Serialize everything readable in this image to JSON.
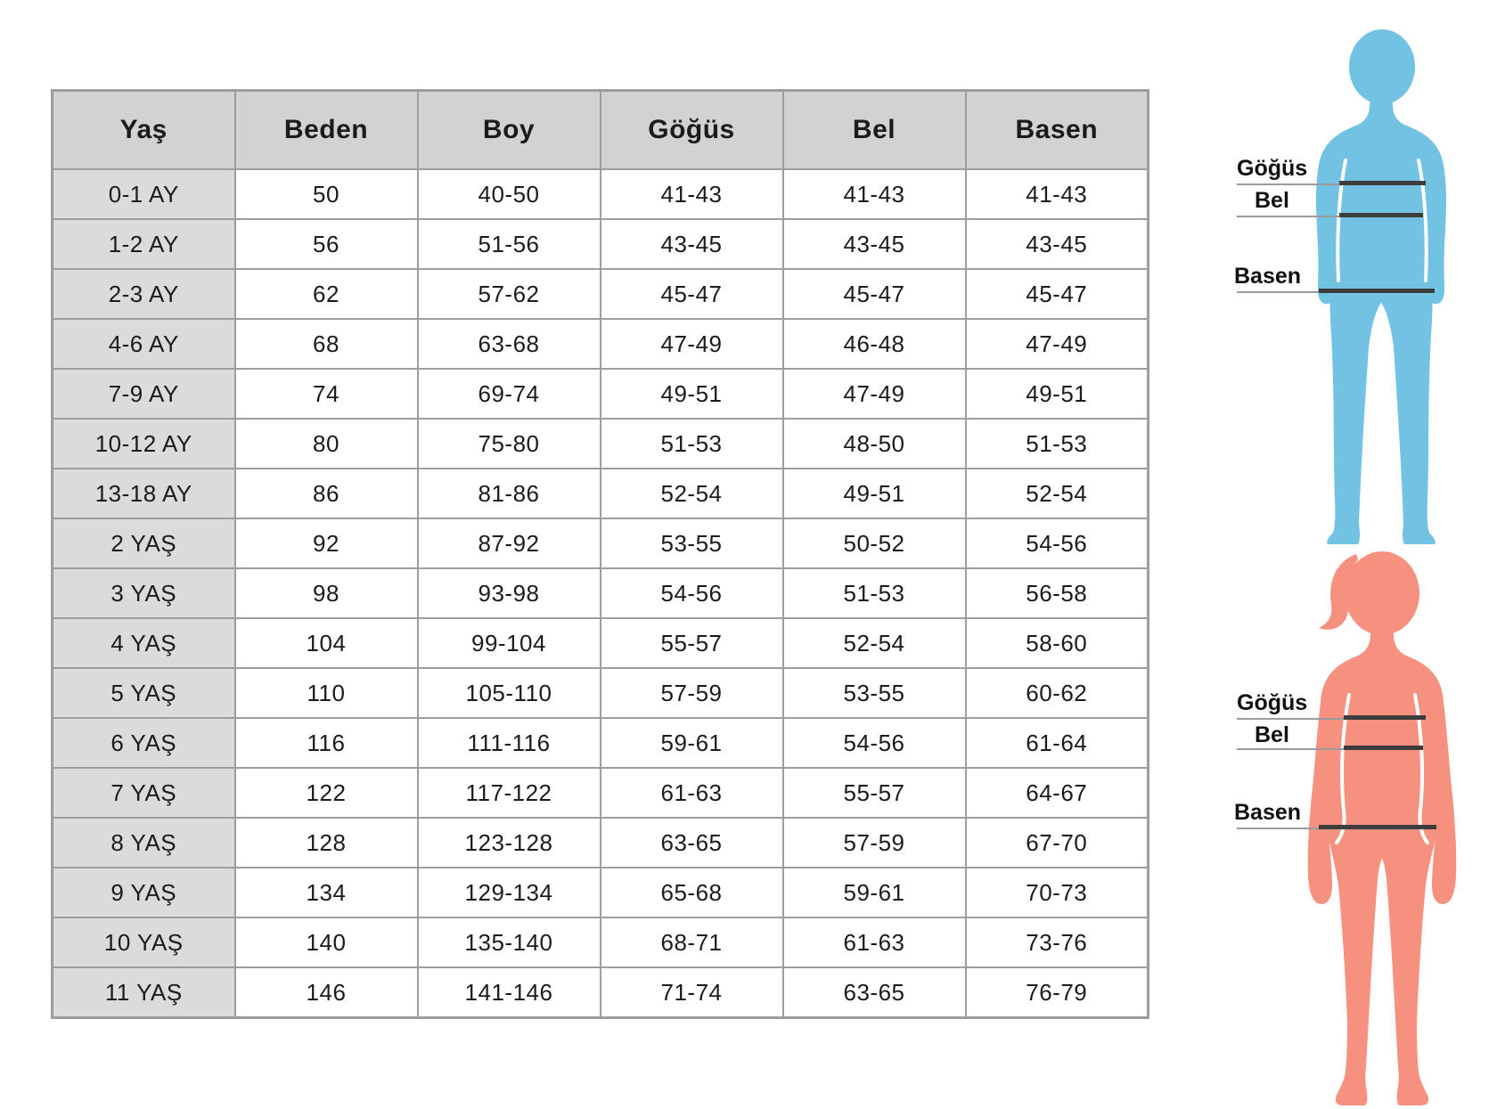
{
  "chart_data": {
    "type": "table",
    "columns": [
      "Yaş",
      "Beden",
      "Boy",
      "Göğüs",
      "Bel",
      "Basen"
    ],
    "rows": [
      [
        "0-1 AY",
        "50",
        "40-50",
        "41-43",
        "41-43",
        "41-43"
      ],
      [
        "1-2 AY",
        "56",
        "51-56",
        "43-45",
        "43-45",
        "43-45"
      ],
      [
        "2-3 AY",
        "62",
        "57-62",
        "45-47",
        "45-47",
        "45-47"
      ],
      [
        "4-6 AY",
        "68",
        "63-68",
        "47-49",
        "46-48",
        "47-49"
      ],
      [
        "7-9 AY",
        "74",
        "69-74",
        "49-51",
        "47-49",
        "49-51"
      ],
      [
        "10-12 AY",
        "80",
        "75-80",
        "51-53",
        "48-50",
        "51-53"
      ],
      [
        "13-18 AY",
        "86",
        "81-86",
        "52-54",
        "49-51",
        "52-54"
      ],
      [
        "2 YAŞ",
        "92",
        "87-92",
        "53-55",
        "50-52",
        "54-56"
      ],
      [
        "3 YAŞ",
        "98",
        "93-98",
        "54-56",
        "51-53",
        "56-58"
      ],
      [
        "4 YAŞ",
        "104",
        "99-104",
        "55-57",
        "52-54",
        "58-60"
      ],
      [
        "5 YAŞ",
        "110",
        "105-110",
        "57-59",
        "53-55",
        "60-62"
      ],
      [
        "6 YAŞ",
        "116",
        "111-116",
        "59-61",
        "54-56",
        "61-64"
      ],
      [
        "7 YAŞ",
        "122",
        "117-122",
        "61-63",
        "55-57",
        "64-67"
      ],
      [
        "8 YAŞ",
        "128",
        "123-128",
        "63-65",
        "57-59",
        "67-70"
      ],
      [
        "9 YAŞ",
        "134",
        "129-134",
        "65-68",
        "59-61",
        "70-73"
      ],
      [
        "10 YAŞ",
        "140",
        "135-140",
        "68-71",
        "61-63",
        "73-76"
      ],
      [
        "11 YAŞ",
        "146",
        "141-146",
        "71-74",
        "63-65",
        "76-79"
      ]
    ]
  },
  "figures": {
    "boy": {
      "color": "#71C2E3",
      "measures": [
        {
          "label": "Göğüs"
        },
        {
          "label": "Bel"
        },
        {
          "label": "Basen"
        }
      ]
    },
    "girl": {
      "color": "#F5917E",
      "measures": [
        {
          "label": "Göğüs"
        },
        {
          "label": "Bel"
        },
        {
          "label": "Basen"
        }
      ]
    }
  },
  "colors": {
    "boy_fill": "#71C2E3",
    "girl_fill": "#F5917E",
    "measure_line": "#3D3D3D",
    "guide_line": "#9B9B9B",
    "header_bg": "#D2D2D2",
    "row_label_bg": "#DBDBDB",
    "table_border": "#9D9D9D",
    "text": "#1B1B1B"
  }
}
